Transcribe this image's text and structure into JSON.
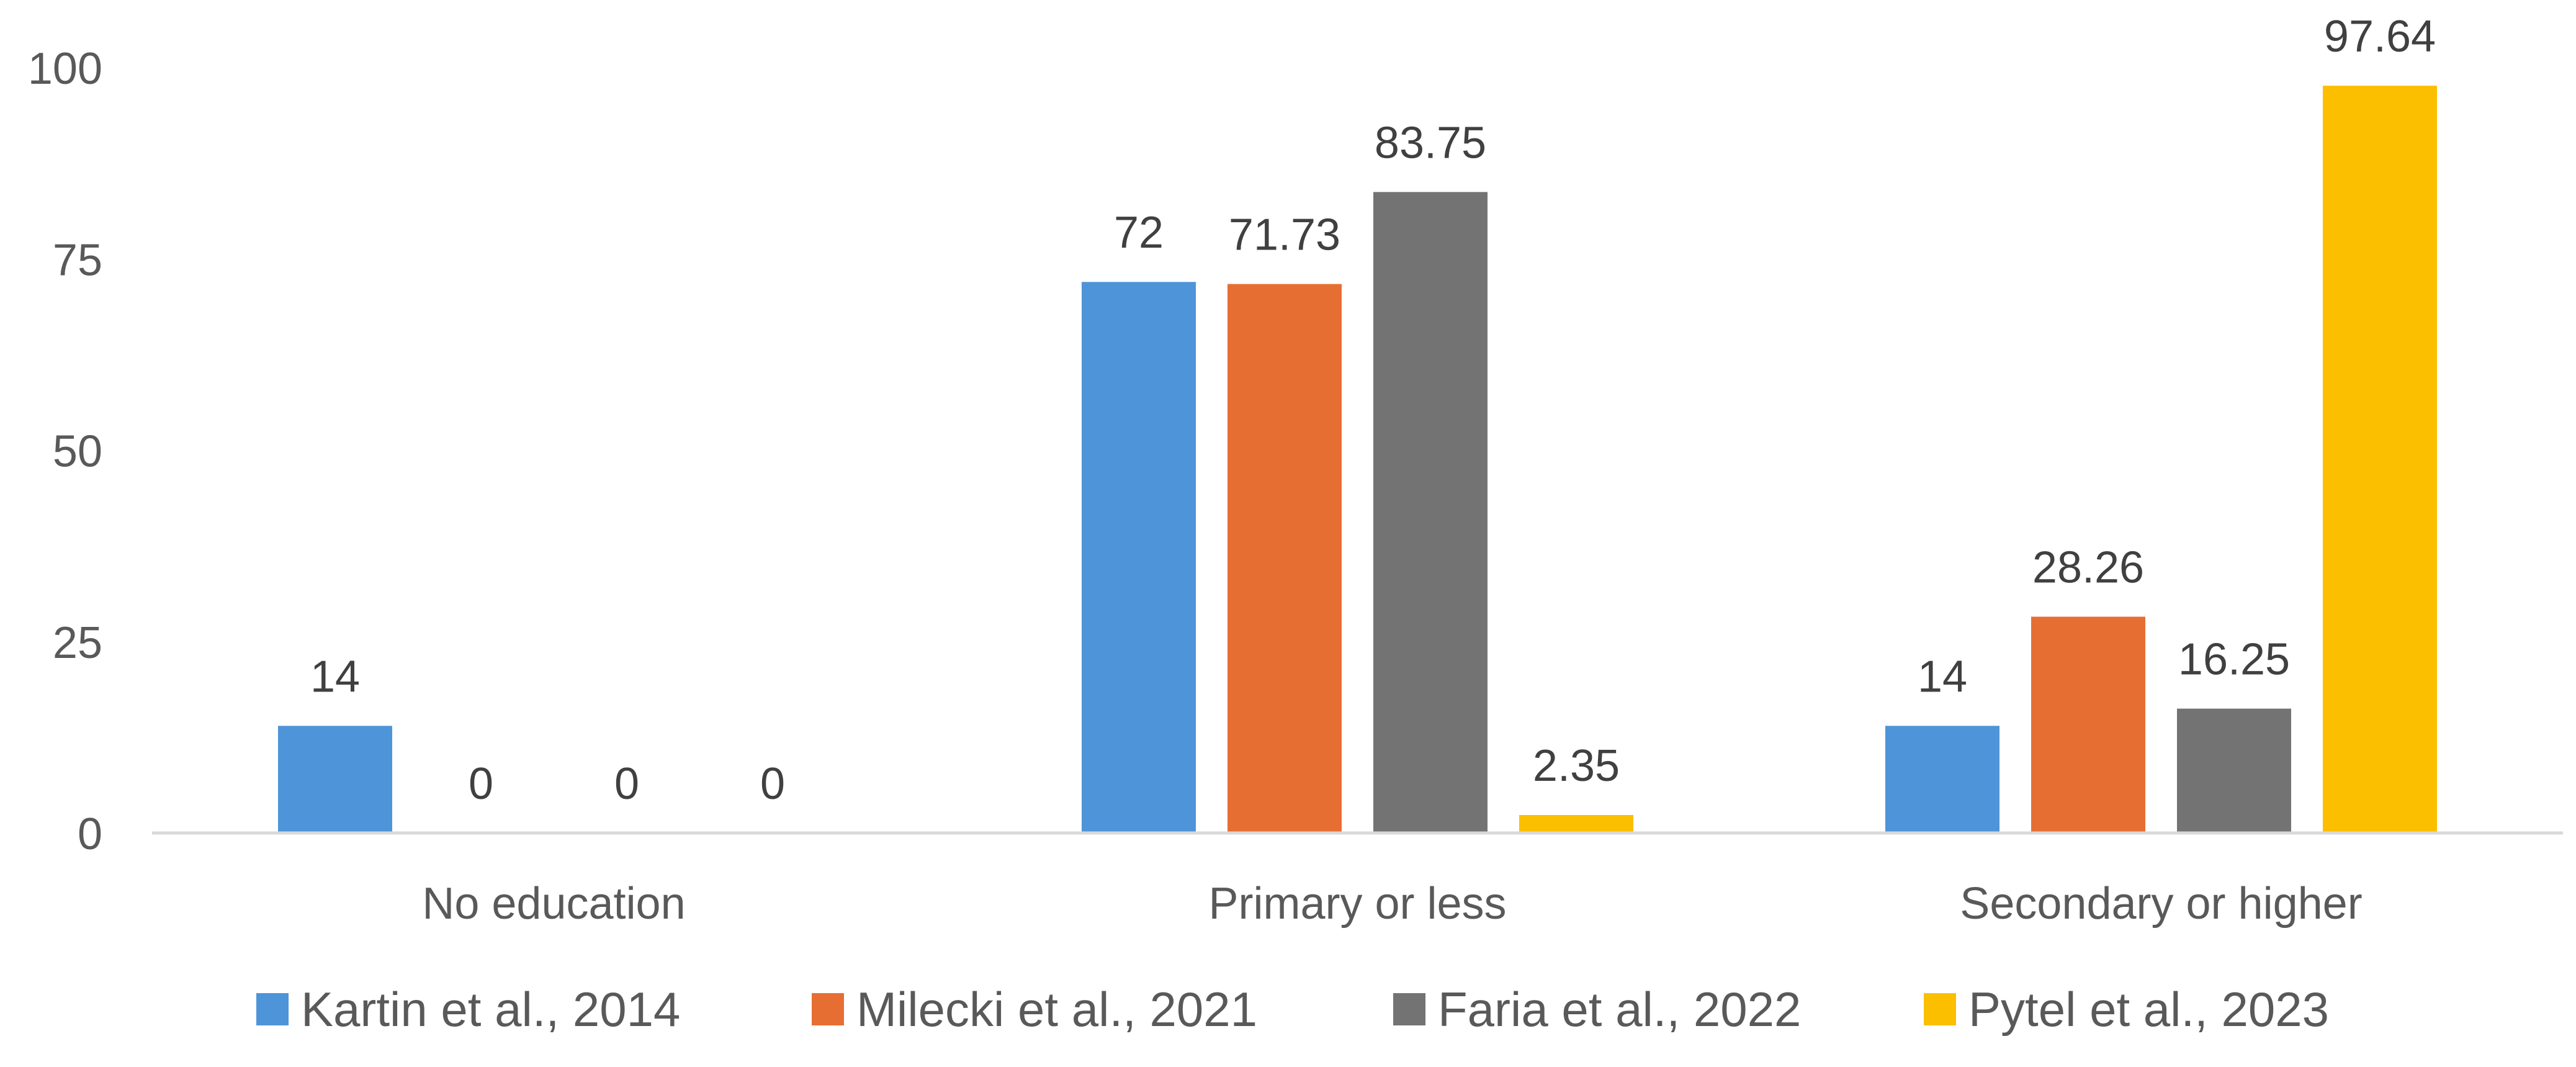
{
  "chart_data": {
    "type": "bar",
    "title": "",
    "xlabel": "",
    "ylabel": "",
    "categories": [
      "No education",
      "Primary or less",
      "Secondary or higher"
    ],
    "series": [
      {
        "name": "Kartin et al., 2014",
        "values": [
          14,
          72,
          14
        ],
        "labels": [
          "14",
          "72",
          "14"
        ],
        "color": "#4E94D8"
      },
      {
        "name": "Milecki et al., 2021",
        "values": [
          0,
          71.73,
          28.26
        ],
        "labels": [
          "0",
          "71.73",
          "28.26"
        ],
        "color": "#E76E33"
      },
      {
        "name": "Faria et al., 2022",
        "values": [
          0,
          83.75,
          16.25
        ],
        "labels": [
          "0",
          "83.75",
          "16.25"
        ],
        "color": "#737373"
      },
      {
        "name": "Pytel et al., 2023",
        "values": [
          0,
          2.35,
          97.64
        ],
        "labels": [
          "0",
          "2.35",
          "97.64"
        ],
        "color": "#FBBF00"
      }
    ],
    "ylim": [
      0,
      100
    ],
    "yticks": [
      "0",
      "25",
      "50",
      "75",
      "100"
    ],
    "grid": false,
    "legend_position": "bottom"
  }
}
